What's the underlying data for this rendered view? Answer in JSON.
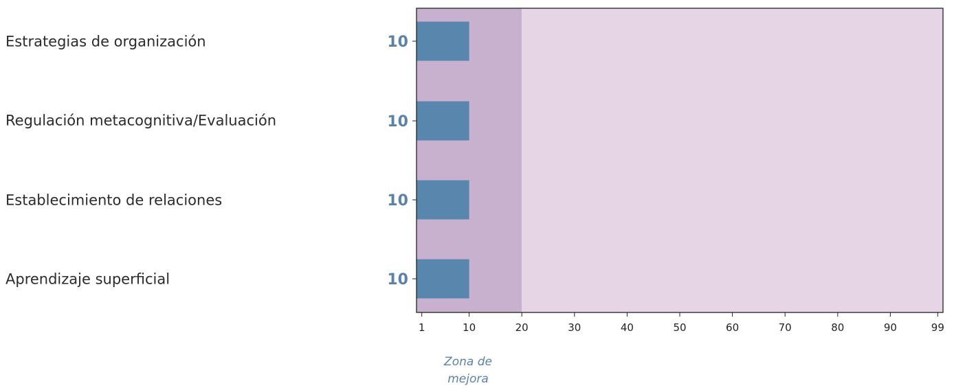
{
  "chart_data": {
    "type": "bar",
    "orientation": "horizontal",
    "categories": [
      "Estrategias de organización",
      "Regulación metacognitiva/Evaluación",
      "Establecimiento de relaciones",
      "Aprendizaje superficial"
    ],
    "values": [
      10,
      10,
      10,
      10
    ],
    "value_labels": [
      "10",
      "10",
      "10",
      "10"
    ],
    "xlim": [
      0,
      100
    ],
    "xticks": [
      1,
      10,
      20,
      30,
      40,
      50,
      60,
      70,
      80,
      90,
      99
    ],
    "grid": false,
    "bands": [
      {
        "from": 0,
        "to": 20,
        "color": "#c8b0cf"
      },
      {
        "from": 20,
        "to": 100,
        "color": "#e6d5e5"
      }
    ],
    "bar_color": "#5886ad",
    "annotation": {
      "line1": "Zona de",
      "line2": "mejora"
    }
  }
}
